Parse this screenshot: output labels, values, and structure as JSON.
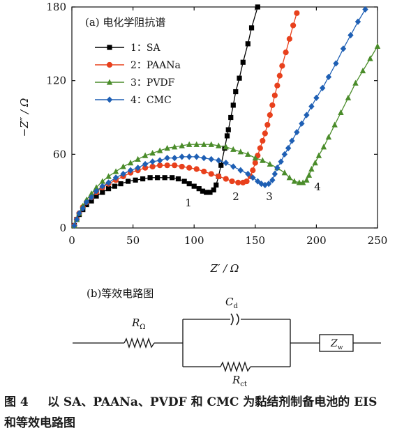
{
  "chart_data": [
    {
      "type": "scatter",
      "panel_label": "(a) 电化学阻抗谱",
      "xlabel": "Z′ / Ω",
      "ylabel": "−Z″ / Ω",
      "xlim": [
        0,
        250
      ],
      "ylim": [
        0,
        180
      ],
      "x_ticks": [
        "0",
        "50",
        "100",
        "150",
        "200",
        "250"
      ],
      "y_ticks": [
        "0",
        "60",
        "120",
        "180"
      ],
      "grid": false,
      "legend_position": "top-left",
      "series": [
        {
          "name": "1：SA",
          "curve_label": "1",
          "color": "#000000",
          "marker": "square",
          "points": [
            [
              2,
              2
            ],
            [
              4,
              7
            ],
            [
              6,
              11
            ],
            [
              9,
              15
            ],
            [
              12,
              19
            ],
            [
              16,
              22
            ],
            [
              20,
              26
            ],
            [
              25,
              29
            ],
            [
              30,
              32
            ],
            [
              35,
              34
            ],
            [
              40,
              36
            ],
            [
              46,
              38
            ],
            [
              52,
              39
            ],
            [
              58,
              40
            ],
            [
              64,
              41
            ],
            [
              70,
              41
            ],
            [
              76,
              41
            ],
            [
              82,
              41
            ],
            [
              87,
              40
            ],
            [
              92,
              38
            ],
            [
              96,
              36
            ],
            [
              100,
              34
            ],
            [
              104,
              32
            ],
            [
              107,
              30
            ],
            [
              110,
              29
            ],
            [
              113,
              29
            ],
            [
              116,
              31
            ],
            [
              118,
              35
            ],
            [
              120,
              42
            ],
            [
              122,
              51
            ],
            [
              125,
              65
            ],
            [
              127,
              75
            ],
            [
              128,
              80
            ],
            [
              130,
              90
            ],
            [
              132,
              100
            ],
            [
              134,
              111
            ],
            [
              137,
              122
            ],
            [
              140,
              135
            ],
            [
              144,
              150
            ],
            [
              147,
              163
            ],
            [
              152,
              180
            ]
          ]
        },
        {
          "name": "2：PAANa",
          "curve_label": "2",
          "color": "#e8401c",
          "marker": "circle",
          "points": [
            [
              2,
              2
            ],
            [
              4,
              7
            ],
            [
              6,
              12
            ],
            [
              9,
              17
            ],
            [
              12,
              21
            ],
            [
              16,
              25
            ],
            [
              20,
              29
            ],
            [
              25,
              33
            ],
            [
              30,
              36
            ],
            [
              36,
              39
            ],
            [
              42,
              42
            ],
            [
              48,
              45
            ],
            [
              54,
              47
            ],
            [
              60,
              49
            ],
            [
              66,
              50
            ],
            [
              72,
              51
            ],
            [
              78,
              51
            ],
            [
              84,
              51
            ],
            [
              90,
              50
            ],
            [
              96,
              49
            ],
            [
              102,
              48
            ],
            [
              108,
              46
            ],
            [
              114,
              44
            ],
            [
              120,
              42
            ],
            [
              126,
              40
            ],
            [
              131,
              38
            ],
            [
              136,
              37
            ],
            [
              140,
              37
            ],
            [
              143,
              38
            ],
            [
              146,
              42
            ],
            [
              148,
              47
            ],
            [
              150,
              53
            ],
            [
              152,
              59
            ],
            [
              154,
              65
            ],
            [
              156,
              71
            ],
            [
              158,
              77
            ],
            [
              160,
              84
            ],
            [
              162,
              92
            ],
            [
              164,
              100
            ],
            [
              166,
              108
            ],
            [
              168,
              116
            ],
            [
              170,
              124
            ],
            [
              172,
              132
            ],
            [
              175,
              143
            ],
            [
              178,
              154
            ],
            [
              181,
              165
            ],
            [
              184,
              175
            ]
          ]
        },
        {
          "name": "3：PVDF",
          "curve_label": "3",
          "color": "#4a8c2a",
          "marker": "triangle",
          "points": [
            [
              2,
              2
            ],
            [
              4,
              7
            ],
            [
              6,
              12
            ],
            [
              9,
              18
            ],
            [
              12,
              23
            ],
            [
              16,
              28
            ],
            [
              20,
              33
            ],
            [
              25,
              38
            ],
            [
              30,
              42
            ],
            [
              36,
              46
            ],
            [
              42,
              50
            ],
            [
              48,
              53
            ],
            [
              54,
              56
            ],
            [
              60,
              59
            ],
            [
              66,
              61
            ],
            [
              72,
              63
            ],
            [
              78,
              65
            ],
            [
              84,
              66
            ],
            [
              90,
              67
            ],
            [
              96,
              68
            ],
            [
              102,
              68
            ],
            [
              108,
              68
            ],
            [
              114,
              68
            ],
            [
              120,
              67
            ],
            [
              126,
              66
            ],
            [
              132,
              64
            ],
            [
              138,
              62
            ],
            [
              144,
              60
            ],
            [
              150,
              57
            ],
            [
              156,
              55
            ],
            [
              162,
              52
            ],
            [
              168,
              49
            ],
            [
              174,
              45
            ],
            [
              178,
              41
            ],
            [
              182,
              38
            ],
            [
              186,
              37
            ],
            [
              189,
              37
            ],
            [
              192,
              39
            ],
            [
              194,
              43
            ],
            [
              196,
              48
            ],
            [
              199,
              53
            ],
            [
              202,
              59
            ],
            [
              206,
              66
            ],
            [
              210,
              74
            ],
            [
              215,
              84
            ],
            [
              220,
              94
            ],
            [
              226,
              106
            ],
            [
              232,
              118
            ],
            [
              238,
              128
            ],
            [
              244,
              138
            ],
            [
              250,
              148
            ]
          ]
        },
        {
          "name": "4：CMC",
          "curve_label": "4",
          "color": "#1e5fb4",
          "marker": "diamond",
          "points": [
            [
              2,
              2
            ],
            [
              4,
              7
            ],
            [
              6,
              12
            ],
            [
              9,
              16
            ],
            [
              12,
              21
            ],
            [
              16,
              25
            ],
            [
              20,
              30
            ],
            [
              25,
              34
            ],
            [
              30,
              37
            ],
            [
              36,
              41
            ],
            [
              42,
              44
            ],
            [
              48,
              47
            ],
            [
              54,
              49
            ],
            [
              60,
              52
            ],
            [
              66,
              54
            ],
            [
              72,
              55
            ],
            [
              78,
              57
            ],
            [
              84,
              57
            ],
            [
              90,
              58
            ],
            [
              96,
              58
            ],
            [
              102,
              58
            ],
            [
              108,
              57
            ],
            [
              114,
              56
            ],
            [
              120,
              55
            ],
            [
              126,
              53
            ],
            [
              132,
              50
            ],
            [
              138,
              47
            ],
            [
              144,
              44
            ],
            [
              148,
              41
            ],
            [
              152,
              38
            ],
            [
              155,
              36
            ],
            [
              158,
              35
            ],
            [
              161,
              36
            ],
            [
              164,
              39
            ],
            [
              166,
              44
            ],
            [
              168,
              49
            ],
            [
              171,
              54
            ],
            [
              174,
              60
            ],
            [
              177,
              65
            ],
            [
              180,
              71
            ],
            [
              184,
              78
            ],
            [
              188,
              85
            ],
            [
              192,
              92
            ],
            [
              196,
              99
            ],
            [
              200,
              106
            ],
            [
              205,
              114
            ],
            [
              210,
              123
            ],
            [
              216,
              134
            ],
            [
              222,
              146
            ],
            [
              228,
              157
            ],
            [
              234,
              168
            ],
            [
              240,
              178
            ]
          ]
        }
      ]
    },
    {
      "type": "diagram",
      "panel_label": "(b)等效电路图",
      "components": {
        "r_omega": "Ω",
        "cd": "d",
        "rct": "ct",
        "zw": "w"
      }
    }
  ],
  "caption": {
    "figure_number": "图 4",
    "text_line1": "以 SA、PAANa、PVDF 和 CMC 为黏结剂制备电池的 EIS",
    "text_line2": "和等效电路图"
  }
}
